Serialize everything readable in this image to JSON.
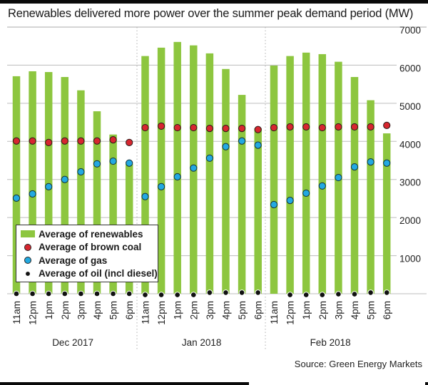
{
  "chart_data": {
    "type": "bar",
    "title": "Renewables delivered more power over the summer peak demand period (MW)",
    "xlabel": "",
    "ylabel": "MW",
    "ylim": [
      0,
      7000
    ],
    "yticks": [
      1000,
      2000,
      3000,
      4000,
      5000,
      6000,
      7000
    ],
    "ytick_labels": [
      "1000",
      "2000",
      "3000",
      "4000",
      "5000",
      "6000",
      "7000"
    ],
    "grid": true,
    "y_axis_side": "right",
    "legend_position": "bottom-left",
    "groups": [
      {
        "label": "Dec 2017",
        "categories": [
          "11am",
          "12pm",
          "1pm",
          "2pm",
          "3pm",
          "4pm",
          "5pm",
          "6pm"
        ],
        "renewables": [
          5710,
          5840,
          5820,
          5690,
          5340,
          4790,
          4180,
          3410
        ],
        "brown_coal": [
          4010,
          4010,
          3970,
          4010,
          4010,
          4010,
          4040,
          3970
        ],
        "gas": [
          2510,
          2620,
          2810,
          3000,
          3200,
          3410,
          3480,
          3430
        ],
        "oil": [
          0,
          0,
          0,
          0,
          0,
          0,
          0,
          0
        ]
      },
      {
        "label": "Jan 2018",
        "categories": [
          "11am",
          "12pm",
          "1pm",
          "2pm",
          "3pm",
          "4pm",
          "5pm",
          "6pm"
        ],
        "renewables": [
          6240,
          6460,
          6610,
          6520,
          6310,
          5900,
          5220,
          4340
        ],
        "brown_coal": [
          4360,
          4400,
          4360,
          4360,
          4340,
          4340,
          4340,
          4310
        ],
        "gas": [
          2550,
          2810,
          3070,
          3300,
          3560,
          3860,
          4010,
          3900
        ],
        "oil": [
          -30,
          -30,
          -30,
          -30,
          30,
          30,
          30,
          30
        ]
      },
      {
        "label": "Feb 2018",
        "categories": [
          "11am",
          "12pm",
          "1pm",
          "2pm",
          "3pm",
          "4pm",
          "5pm",
          "6pm"
        ],
        "renewables": [
          5990,
          6240,
          6330,
          6290,
          6090,
          5690,
          5080,
          4210
        ],
        "brown_coal": [
          4360,
          4380,
          4380,
          4360,
          4380,
          4380,
          4380,
          4420
        ],
        "gas": [
          2340,
          2450,
          2640,
          2830,
          3050,
          3330,
          3460,
          3430
        ],
        "oil": [
          null,
          -30,
          -30,
          -30,
          -10,
          -10,
          30,
          30
        ]
      }
    ],
    "series": [
      {
        "key": "renewables",
        "name": "Average of renewables",
        "mark": "bar",
        "color": "#8dc63f"
      },
      {
        "key": "brown_coal",
        "name": "Average of brown coal",
        "mark": "dot",
        "color": "#d7262f"
      },
      {
        "key": "gas",
        "name": "Average of gas",
        "mark": "dot",
        "color": "#22a9e1"
      },
      {
        "key": "oil",
        "name": "Average of oil (incl diesel)",
        "mark": "dot",
        "color": "#111111"
      }
    ],
    "source": "Source: Green Energy Markets"
  }
}
